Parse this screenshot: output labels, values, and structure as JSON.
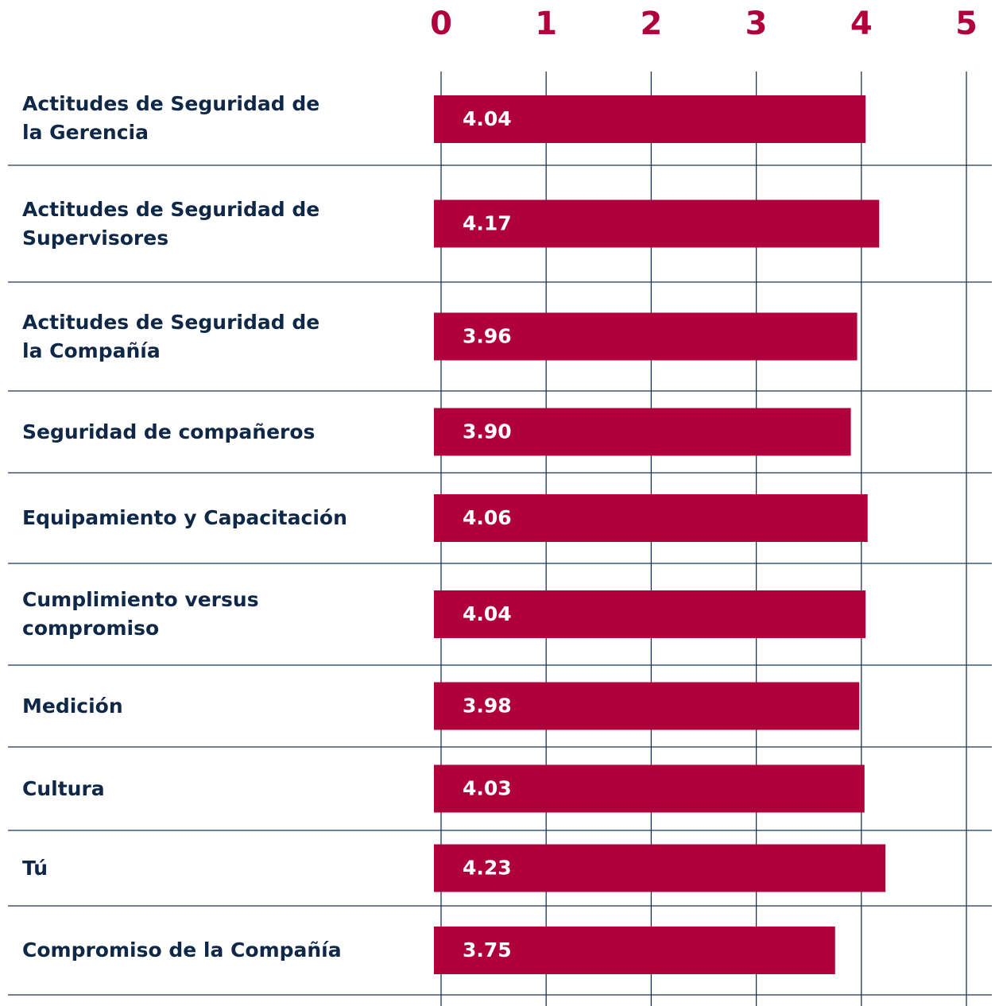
{
  "chart_data": {
    "type": "barh",
    "categories": [
      "Actitudes de Seguridad de\nla Gerencia",
      "Actitudes de Seguridad de\nSupervisores",
      "Actitudes de Seguridad de\nla Compañía",
      "Seguridad de compañeros",
      "Equipamiento y Capacitación",
      "Cumplimiento versus\ncompromiso",
      "Medición",
      "Cultura",
      "Tú",
      "Compromiso de la Compañía"
    ],
    "values": [
      4.04,
      4.17,
      3.96,
      3.9,
      4.06,
      4.04,
      3.98,
      4.03,
      4.23,
      3.75
    ],
    "value_labels": [
      "4.04",
      "4.17",
      "3.96",
      "3.90",
      "4.06",
      "4.04",
      "3.98",
      "4.03",
      "4.23",
      "3.75"
    ],
    "color": "#b0003c",
    "xlim": [
      0,
      5
    ],
    "xticks": [
      0,
      1,
      2,
      3,
      4,
      5
    ],
    "grid": true
  }
}
